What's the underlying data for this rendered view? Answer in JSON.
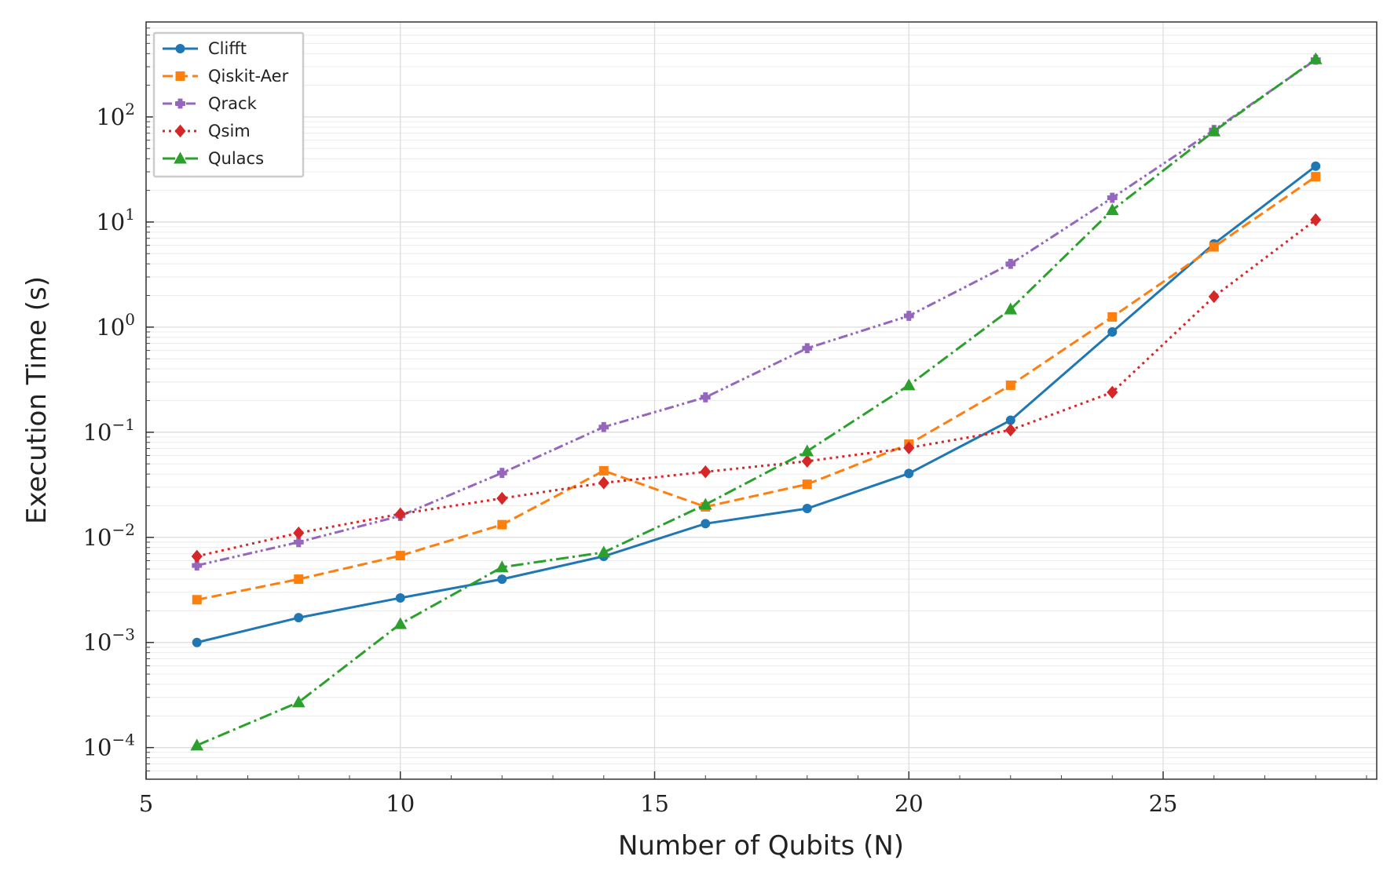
{
  "chart_data": {
    "type": "line",
    "title": "",
    "xlabel": "Number of Qubits (N)",
    "ylabel": "Execution Time (s)",
    "x": [
      6,
      8,
      10,
      12,
      14,
      16,
      18,
      20,
      22,
      24,
      26,
      28
    ],
    "xlim": [
      5,
      29.2
    ],
    "ylim": [
      5e-05,
      800
    ],
    "yscale": "log",
    "xticks": [
      5,
      10,
      15,
      20,
      25
    ],
    "yticks": [
      {
        "value": 0.0001,
        "base": "10",
        "exp": "−4"
      },
      {
        "value": 0.001,
        "base": "10",
        "exp": "−3"
      },
      {
        "value": 0.01,
        "base": "10",
        "exp": "−2"
      },
      {
        "value": 0.1,
        "base": "10",
        "exp": "−1"
      },
      {
        "value": 1,
        "base": "10",
        "exp": "0"
      },
      {
        "value": 10,
        "base": "10",
        "exp": "1"
      },
      {
        "value": 100,
        "base": "10",
        "exp": "2"
      }
    ],
    "grid": true,
    "legend_position": "top-left",
    "series": [
      {
        "name": "Clifft",
        "color": "#1f77b4",
        "dash": "solid",
        "marker": "circle",
        "values": [
          0.001,
          0.00172,
          0.00265,
          0.004,
          0.0066,
          0.0135,
          0.0188,
          0.0405,
          0.13,
          0.9,
          6.2,
          34
        ]
      },
      {
        "name": "Qiskit-Aer",
        "color": "#ff7f0e",
        "dash": "dashed",
        "marker": "square",
        "values": [
          0.00255,
          0.004,
          0.0067,
          0.0132,
          0.043,
          0.0195,
          0.032,
          0.077,
          0.28,
          1.25,
          5.8,
          27
        ]
      },
      {
        "name": "Qrack",
        "color": "#9467bd",
        "dash": "dashdotdot",
        "marker": "plus",
        "values": [
          0.0054,
          0.009,
          0.016,
          0.041,
          0.112,
          0.215,
          0.63,
          1.28,
          4.0,
          17,
          75,
          350
        ]
      },
      {
        "name": "Qsim",
        "color": "#d62728",
        "dash": "dotted",
        "marker": "diamond",
        "values": [
          0.0066,
          0.011,
          0.0167,
          0.0235,
          0.033,
          0.042,
          0.053,
          0.071,
          0.105,
          0.24,
          1.95,
          10.5
        ]
      },
      {
        "name": "Qulacs",
        "color": "#2ca02c",
        "dash": "dashdot",
        "marker": "triangle",
        "values": [
          0.000105,
          0.00027,
          0.0015,
          0.0052,
          0.0072,
          0.0205,
          0.066,
          0.28,
          1.48,
          13,
          73,
          355
        ]
      }
    ]
  }
}
